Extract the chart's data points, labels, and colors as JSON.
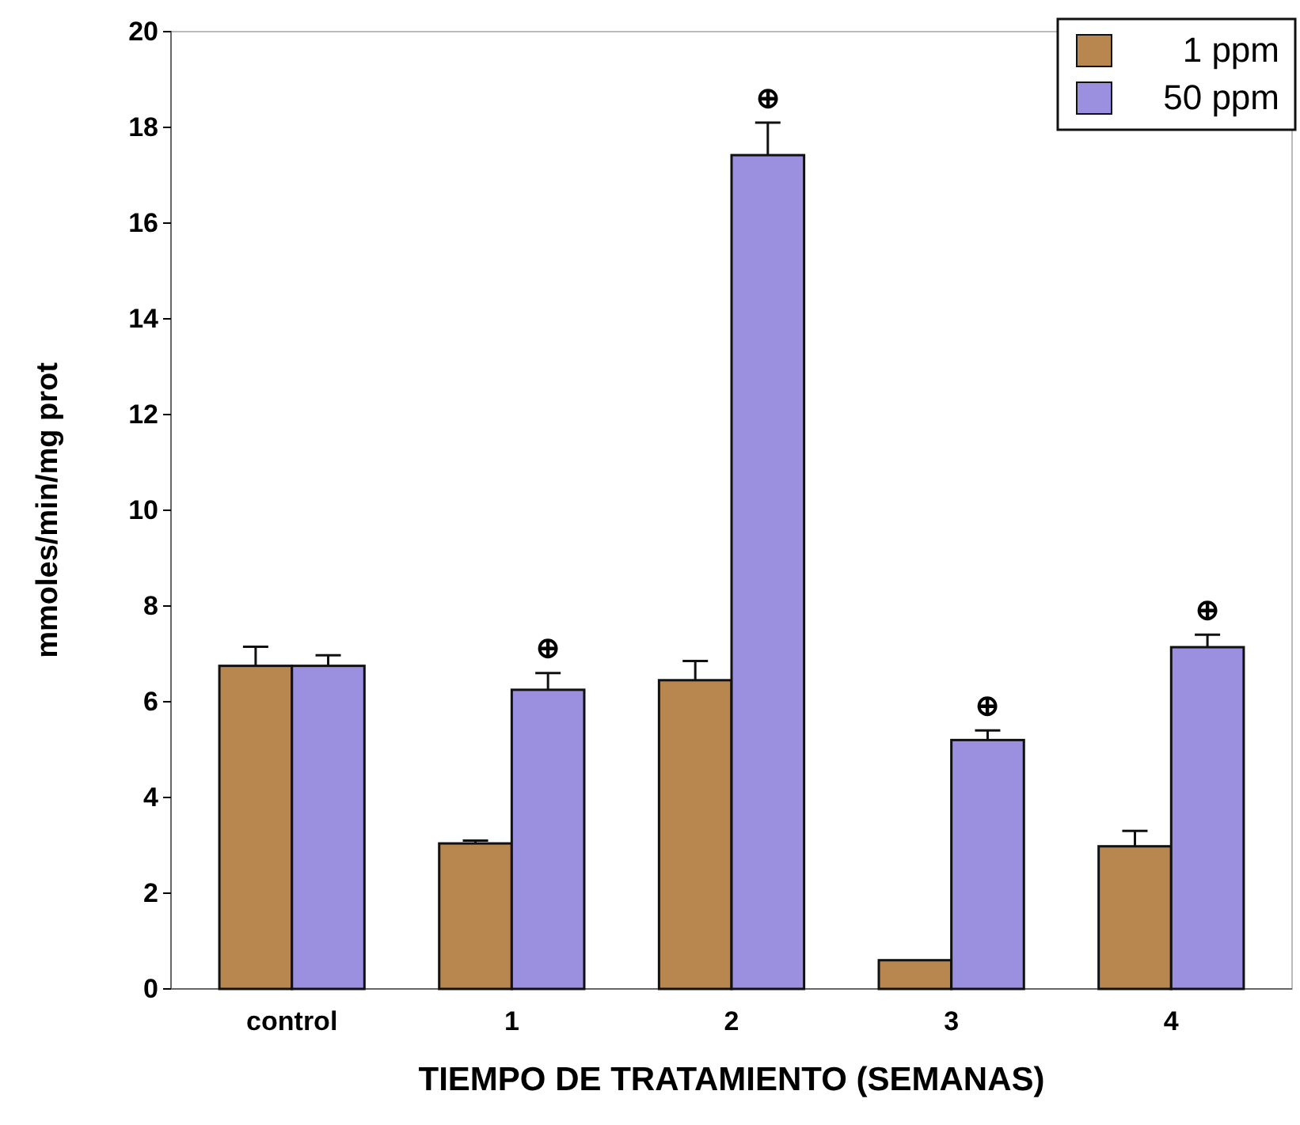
{
  "chart_data": {
    "type": "bar",
    "xlabel": "TIEMPO DE TRATAMIENTO (SEMANAS)",
    "ylabel": "mmoles/min/mg prot",
    "categories": [
      "control",
      "1",
      "2",
      "3",
      "4"
    ],
    "series": [
      {
        "name": "1 ppm",
        "color": "#b8874f",
        "values": [
          6.75,
          3.04,
          6.45,
          0.6,
          2.98
        ],
        "errors": [
          [
            6.75,
            7.15
          ],
          [
            3.04,
            3.1
          ],
          [
            6.45,
            6.85
          ],
          null,
          [
            2.98,
            3.3
          ]
        ]
      },
      {
        "name": "50 ppm",
        "color": "#9b8fe0",
        "values": [
          6.75,
          6.25,
          17.42,
          5.2,
          7.14
        ],
        "errors": [
          [
            6.75,
            6.97
          ],
          [
            6.25,
            6.6
          ],
          [
            17.42,
            18.1
          ],
          [
            5.2,
            5.4
          ],
          [
            7.14,
            7.4
          ]
        ]
      }
    ],
    "ylim": [
      0,
      20
    ],
    "yticks": [
      0,
      2,
      4,
      6,
      8,
      10,
      12,
      14,
      16,
      18,
      20
    ],
    "grid": false,
    "legend": "top right",
    "annotations": [
      "⊕",
      "⊕",
      "⊕",
      "⊕"
    ]
  }
}
